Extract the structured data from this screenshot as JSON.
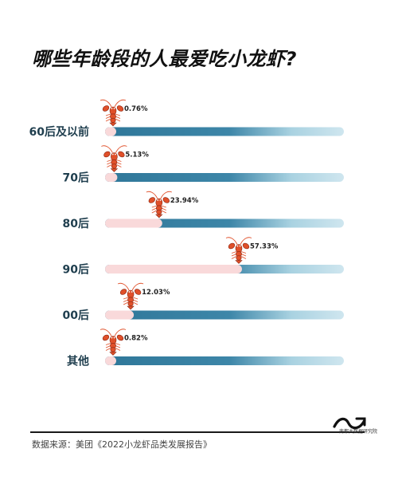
{
  "title": "哪些年龄段的人最爱吃小龙虾?",
  "source": "数据来源：美团《2022小龙虾品类发展报告》",
  "logo_text": "南都大数据研究院",
  "colors": {
    "bar_dark": "#2f7799",
    "bar_light": "#c9e3ee",
    "fill_pink": "#f9d9da",
    "label_color": "#1f3e4e",
    "lobster": "#e0502a"
  },
  "icons": {
    "marker": "crayfish-icon",
    "logo": "brand-logo-icon"
  },
  "chart_data": {
    "type": "bar",
    "orientation": "horizontal",
    "title": "哪些年龄段的人最爱吃小龙虾?",
    "categories": [
      "60后及以前",
      "70后",
      "80后",
      "90后",
      "00后",
      "其他"
    ],
    "values": [
      0.76,
      5.13,
      23.94,
      57.33,
      12.03,
      0.82
    ],
    "value_labels": [
      "0.76%",
      "5.13%",
      "23.94%",
      "57.33%",
      "12.03%",
      "0.82%"
    ],
    "unit": "%",
    "xlim": [
      0,
      100
    ],
    "grid": false,
    "legend": "none"
  }
}
